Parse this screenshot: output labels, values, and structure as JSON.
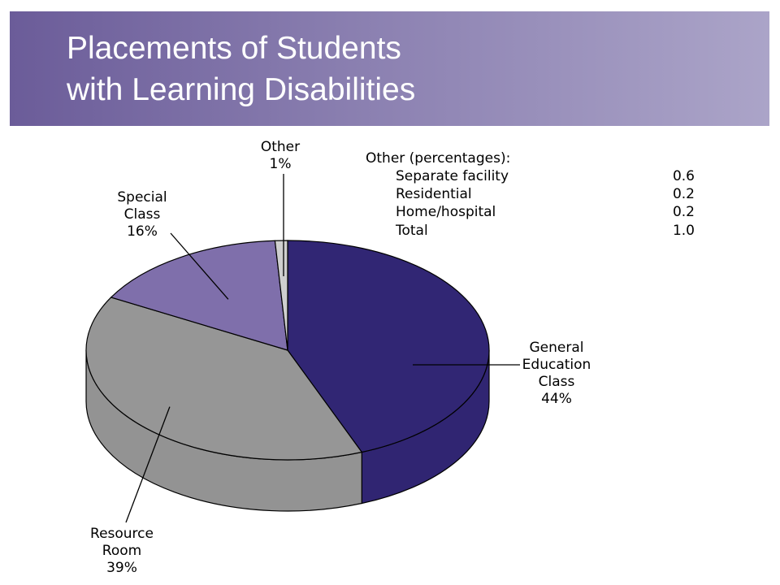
{
  "header": {
    "title_line1": "Placements of Students",
    "title_line2": "with Learning Disabilities"
  },
  "chart_data": {
    "type": "pie",
    "title": "Placements of Students with Learning Disabilities",
    "categories": [
      "General Education Class",
      "Resource Room",
      "Special Class",
      "Other"
    ],
    "values": [
      44,
      39,
      16,
      1
    ],
    "unit": "%",
    "labels": [
      {
        "lines": [
          "General",
          "Education",
          "Class",
          "44%"
        ],
        "color": "#312674"
      },
      {
        "lines": [
          "Resource",
          "Room",
          "39%"
        ],
        "color": "#969696"
      },
      {
        "lines": [
          "Special",
          "Class",
          "16%"
        ],
        "color": "#7f6fab"
      },
      {
        "lines": [
          "Other",
          "1%"
        ],
        "color": "#cfcfcf"
      }
    ],
    "legend": "none",
    "annotation_table": {
      "title": "Other (percentages):",
      "rows": [
        {
          "label": "Separate facility",
          "value": "0.6"
        },
        {
          "label": "Residential",
          "value": "0.2"
        },
        {
          "label": "Home/hospital",
          "value": "0.2"
        },
        {
          "label": "Total",
          "value": "1.0"
        }
      ]
    }
  }
}
